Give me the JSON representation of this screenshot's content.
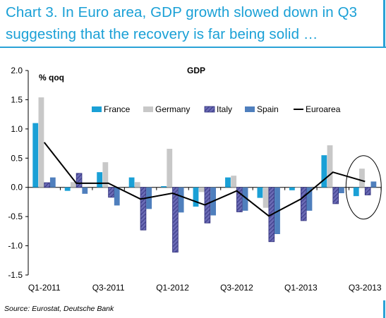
{
  "header": {
    "line1": "Chart 3. In Euro area, GDP growth slowed down in Q3",
    "line2": "suggesting that the recovery is far being solid …"
  },
  "source": "Source: Eurostat, Deutsche Bank",
  "colors": {
    "france": "#1aa0d6",
    "germany": "#c8c8c8",
    "italy": "#6a6ab4",
    "spain": "#4f7fbd",
    "euroarea": "#000000",
    "accent": "#2aa2d6"
  },
  "chart_data": {
    "type": "bar",
    "title": "GDP",
    "ylabel": "% qoq",
    "ylim": [
      -1.5,
      2.0
    ],
    "yticks": [
      "2.0",
      "1.5",
      "1.0",
      "0.5",
      "0.0",
      "-0.5",
      "-1.0",
      "-1.5"
    ],
    "categories": [
      "Q1-2011",
      "Q2-2011",
      "Q3-2011",
      "Q4-2011",
      "Q1-2012",
      "Q2-2012",
      "Q3-2012",
      "Q4-2012",
      "Q1-2013",
      "Q2-2013",
      "Q3-2013"
    ],
    "xtick_labels": [
      "Q1-2011",
      "",
      "Q3-2011",
      "",
      "Q1-2012",
      "",
      "Q3-2012",
      "",
      "Q1-2013",
      "",
      "Q3-2013"
    ],
    "series": [
      {
        "name": "France",
        "type": "bar",
        "values": [
          1.1,
          -0.06,
          0.26,
          0.17,
          0.02,
          -0.33,
          0.17,
          -0.18,
          -0.05,
          0.55,
          -0.15
        ]
      },
      {
        "name": "Germany",
        "type": "bar",
        "values": [
          1.54,
          0.09,
          0.43,
          0.09,
          0.66,
          -0.08,
          0.2,
          -0.35,
          0.0,
          0.72,
          0.32
        ]
      },
      {
        "name": "Italy",
        "type": "bar",
        "values": [
          0.08,
          0.24,
          -0.17,
          -0.73,
          -1.11,
          -0.61,
          -0.42,
          -0.93,
          -0.57,
          -0.28,
          -0.13
        ]
      },
      {
        "name": "Spain",
        "type": "bar",
        "values": [
          0.17,
          -0.11,
          -0.31,
          -0.37,
          -0.43,
          -0.48,
          -0.4,
          -0.8,
          -0.4,
          -0.1,
          0.1
        ]
      },
      {
        "name": "Euroarea",
        "type": "line",
        "values": [
          0.77,
          0.07,
          0.07,
          -0.2,
          -0.1,
          -0.3,
          -0.06,
          -0.49,
          -0.2,
          0.26,
          0.1
        ]
      }
    ],
    "grid": false,
    "legend": "top"
  }
}
